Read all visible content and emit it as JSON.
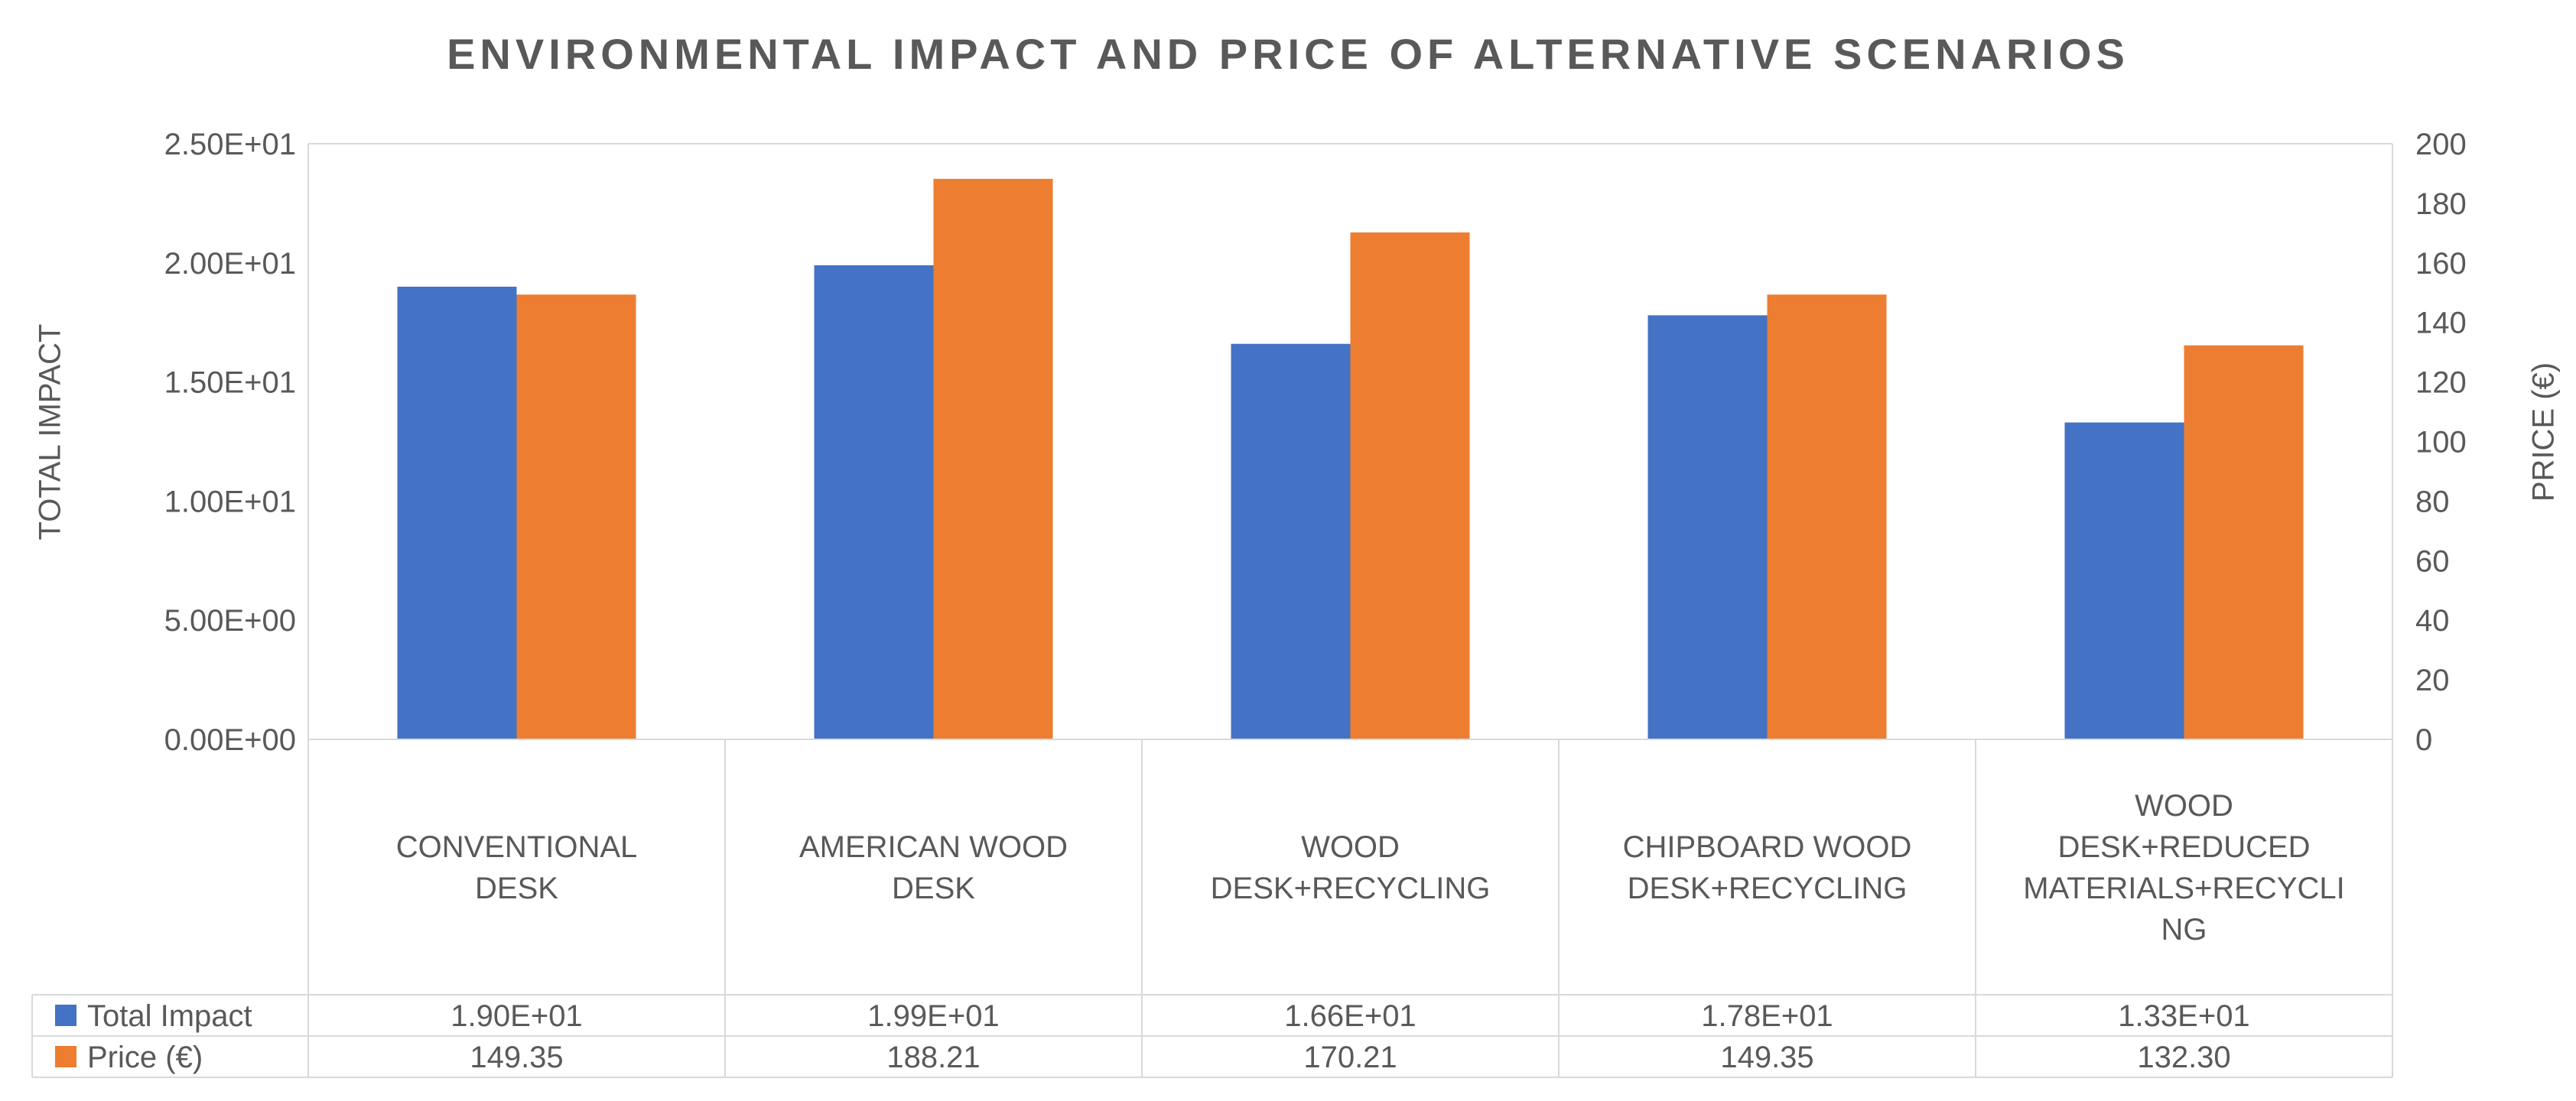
{
  "chart_data": {
    "type": "bar",
    "title": "ENVIRONMENTAL IMPACT AND PRICE OF ALTERNATIVE SCENARIOS",
    "ylabel": "TOTAL IMPACT",
    "y2label": "PRICE (€)",
    "categories": [
      [
        "CONVENTIONAL",
        "DESK"
      ],
      [
        "AMERICAN WOOD",
        "DESK"
      ],
      [
        "WOOD",
        "DESK+RECYCLING"
      ],
      [
        "CHIPBOARD WOOD",
        "DESK+RECYCLING"
      ],
      [
        "WOOD",
        "DESK+REDUCED",
        "MATERIALS+RECYCLI",
        "NG"
      ]
    ],
    "series": [
      {
        "name": "Total Impact",
        "axis": "left",
        "color": "#4472C4",
        "values": [
          19.0,
          19.9,
          16.6,
          17.8,
          13.3
        ],
        "table_labels": [
          "1.90E+01",
          "1.99E+01",
          "1.66E+01",
          "1.78E+01",
          "1.33E+01"
        ]
      },
      {
        "name": "Price (€)",
        "axis": "right",
        "color": "#ED7D31",
        "values": [
          149.35,
          188.21,
          170.21,
          149.35,
          132.3
        ],
        "table_labels": [
          "149.35",
          "188.21",
          "170.21",
          "149.35",
          "132.30"
        ]
      }
    ],
    "ylim": [
      0,
      25
    ],
    "y2lim": [
      0,
      200
    ],
    "yticks": [
      "0.00E+00",
      "5.00E+00",
      "1.00E+01",
      "1.50E+01",
      "2.00E+01",
      "2.50E+01"
    ],
    "y2ticks": [
      "0",
      "20",
      "40",
      "60",
      "80",
      "100",
      "120",
      "140",
      "160",
      "180",
      "200"
    ],
    "grid": true,
    "legend": "data-table"
  }
}
